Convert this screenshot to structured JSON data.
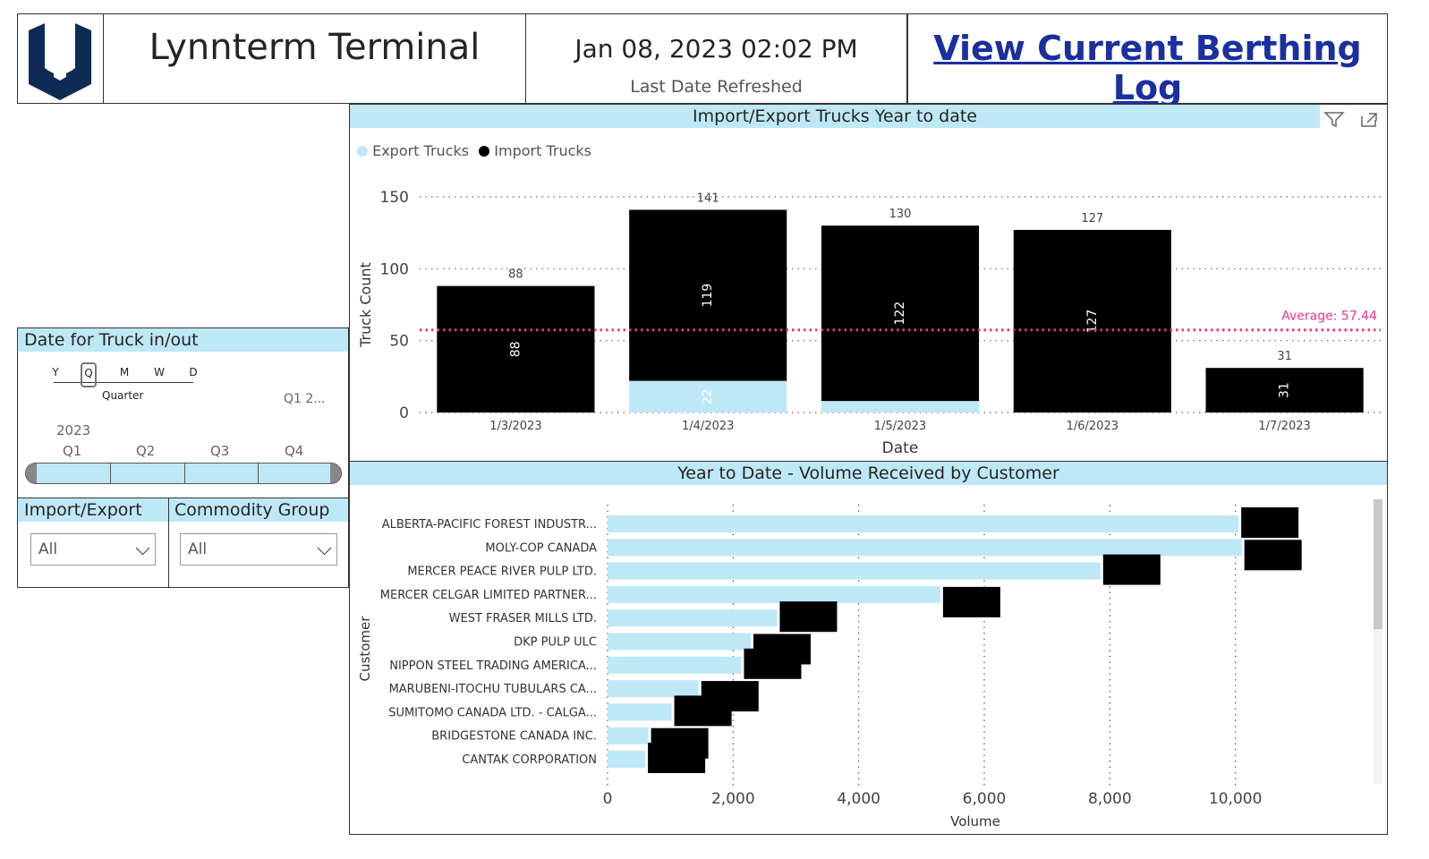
{
  "header": {
    "title": "Lynnterm Terminal",
    "refresh_datetime": "Jan 08, 2023 02:02 PM",
    "refresh_label": "Last Date Refreshed",
    "berthing_link": "View Current Berthing Log"
  },
  "date_slicer": {
    "title": "Date for Truck in/out",
    "granularity": [
      "Y",
      "Q",
      "M",
      "W",
      "D"
    ],
    "granularity_selected": "Q",
    "granularity_label": "Quarter",
    "range_label": "Q1 2...",
    "year": "2023",
    "quarters": [
      "Q1",
      "Q2",
      "Q3",
      "Q4"
    ]
  },
  "import_export_filter": {
    "title": "Import/Export",
    "value": "All"
  },
  "commodity_filter": {
    "title": "Commodity Group",
    "value": "All"
  },
  "trucks_chart": {
    "title": "Import/Export Trucks Year to date",
    "legend": [
      "Export Trucks",
      "Import Trucks"
    ],
    "average_label": "Average: 57.44",
    "chart_data": {
      "type": "bar",
      "stacked": true,
      "categories": [
        "1/3/2023",
        "1/4/2023",
        "1/5/2023",
        "1/6/2023",
        "1/7/2023"
      ],
      "series": [
        {
          "name": "Export Trucks",
          "color": "#bfe8f7",
          "values": [
            0,
            22,
            8,
            0,
            0
          ],
          "labels": [
            "",
            "22",
            "",
            "",
            ""
          ]
        },
        {
          "name": "Import Trucks",
          "color": "#000000",
          "values": [
            88,
            119,
            122,
            127,
            31
          ],
          "labels": [
            "88",
            "119",
            "122",
            "127",
            "31"
          ]
        }
      ],
      "totals": [
        "88",
        "141",
        "130",
        "127",
        "31"
      ],
      "average": 57.44,
      "xlabel": "Date",
      "ylabel": "Truck Count",
      "yticks": [
        "0",
        "50",
        "100",
        "150"
      ],
      "ylim": [
        0,
        150
      ],
      "grid": true,
      "legend_position": "top-left"
    }
  },
  "volume_chart": {
    "title": "Year to Date - Volume Received by Customer",
    "chart_data": {
      "type": "bar",
      "orientation": "horizontal",
      "categories": [
        "ALBERTA-PACIFIC FOREST INDUSTR...",
        "MOLY-COP CANADA",
        "MERCER PEACE RIVER PULP LTD.",
        "MERCER CELGAR LIMITED PARTNER...",
        "WEST FRASER MILLS LTD.",
        "DKP PULP ULC",
        "NIPPON STEEL TRADING AMERICA...",
        "MARUBENI-ITOCHU TUBULARS CA...",
        "SUMITOMO CANADA LTD. - CALGA...",
        "BRIDGESTONE CANADA INC.",
        "CANTAK CORPORATION"
      ],
      "values": [
        10050,
        10100,
        7850,
        5300,
        2700,
        2280,
        2130,
        1450,
        1020,
        650,
        600
      ],
      "color": "#bfe8f7",
      "xlabel": "Volume",
      "ylabel": "Customer",
      "xticks": [
        "0",
        "2,000",
        "4,000",
        "6,000",
        "8,000",
        "10,000"
      ],
      "xlim": [
        0,
        12000
      ],
      "grid": true
    }
  },
  "colors": {
    "accent": "#bfe8f7",
    "logo": "#0d2b55",
    "link": "#1a2fa0",
    "average": "#e8368f"
  }
}
